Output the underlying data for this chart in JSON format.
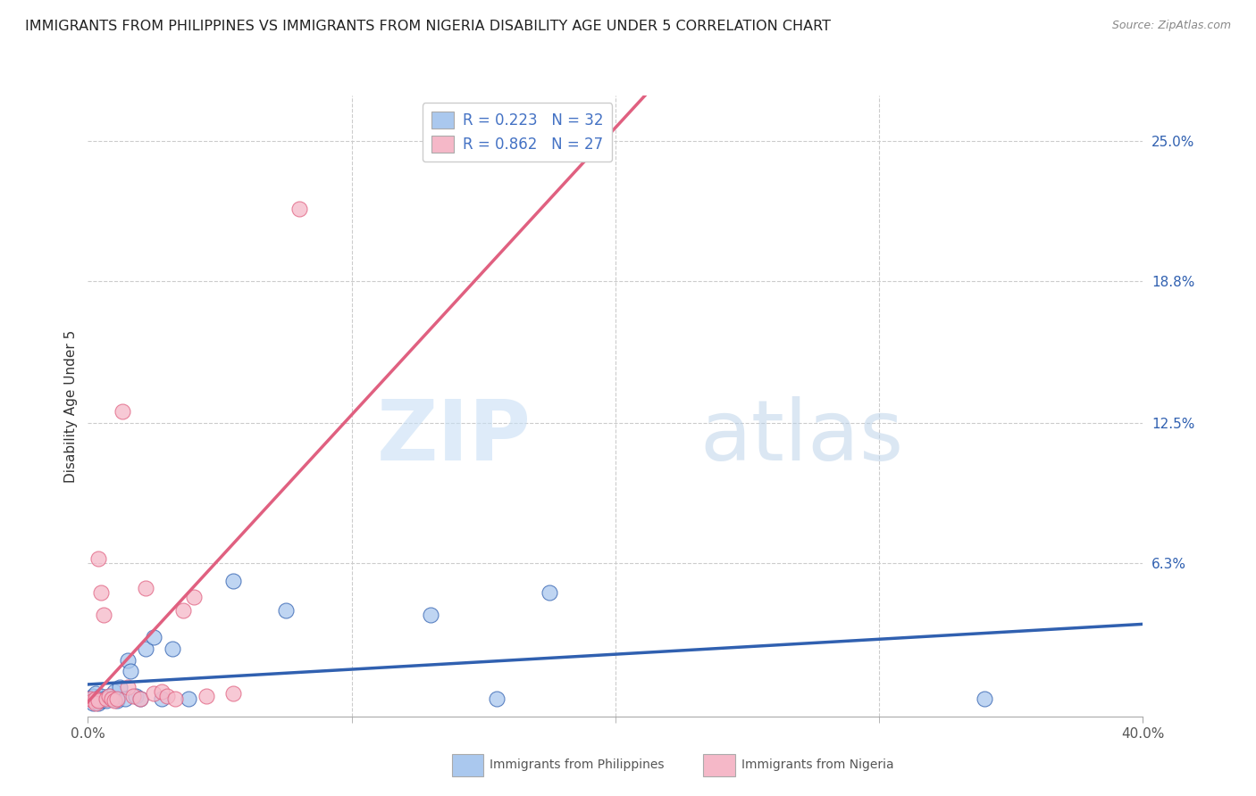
{
  "title": "IMMIGRANTS FROM PHILIPPINES VS IMMIGRANTS FROM NIGERIA DISABILITY AGE UNDER 5 CORRELATION CHART",
  "source": "Source: ZipAtlas.com",
  "ylabel": "Disability Age Under 5",
  "xlim": [
    0.0,
    0.4
  ],
  "ylim": [
    -0.005,
    0.27
  ],
  "yticks": [
    0.063,
    0.125,
    0.188,
    0.25
  ],
  "ytick_labels": [
    "6.3%",
    "12.5%",
    "18.8%",
    "25.0%"
  ],
  "philippines_color": "#aac8ee",
  "nigeria_color": "#f5b8c8",
  "philippines_line_color": "#3060b0",
  "nigeria_line_color": "#e06080",
  "background_color": "#ffffff",
  "watermark_zip": "ZIP",
  "watermark_atlas": "atlas",
  "legend_R_philippines": "R = 0.223",
  "legend_N_philippines": "N = 32",
  "legend_R_nigeria": "R = 0.862",
  "legend_N_nigeria": "N = 27",
  "legend_color": "#4472c4",
  "philippines_x": [
    0.001,
    0.002,
    0.002,
    0.003,
    0.003,
    0.004,
    0.004,
    0.005,
    0.005,
    0.006,
    0.007,
    0.008,
    0.009,
    0.01,
    0.011,
    0.012,
    0.014,
    0.015,
    0.016,
    0.018,
    0.02,
    0.022,
    0.025,
    0.028,
    0.032,
    0.038,
    0.055,
    0.075,
    0.13,
    0.155,
    0.175,
    0.34
  ],
  "philippines_y": [
    0.003,
    0.001,
    0.004,
    0.002,
    0.005,
    0.001,
    0.003,
    0.002,
    0.004,
    0.003,
    0.002,
    0.004,
    0.003,
    0.006,
    0.002,
    0.008,
    0.003,
    0.02,
    0.015,
    0.004,
    0.003,
    0.025,
    0.03,
    0.003,
    0.025,
    0.003,
    0.055,
    0.042,
    0.04,
    0.003,
    0.05,
    0.003
  ],
  "nigeria_x": [
    0.001,
    0.002,
    0.003,
    0.003,
    0.004,
    0.004,
    0.005,
    0.006,
    0.007,
    0.008,
    0.009,
    0.01,
    0.011,
    0.013,
    0.015,
    0.017,
    0.02,
    0.022,
    0.025,
    0.028,
    0.03,
    0.033,
    0.036,
    0.04,
    0.045,
    0.055,
    0.08
  ],
  "nigeria_y": [
    0.003,
    0.002,
    0.003,
    0.001,
    0.002,
    0.065,
    0.05,
    0.04,
    0.003,
    0.004,
    0.003,
    0.002,
    0.003,
    0.13,
    0.008,
    0.004,
    0.003,
    0.052,
    0.005,
    0.006,
    0.004,
    0.003,
    0.042,
    0.048,
    0.004,
    0.005,
    0.22
  ],
  "grid_color": "#cccccc",
  "title_fontsize": 11.5,
  "axis_label_fontsize": 11,
  "tick_fontsize": 11
}
